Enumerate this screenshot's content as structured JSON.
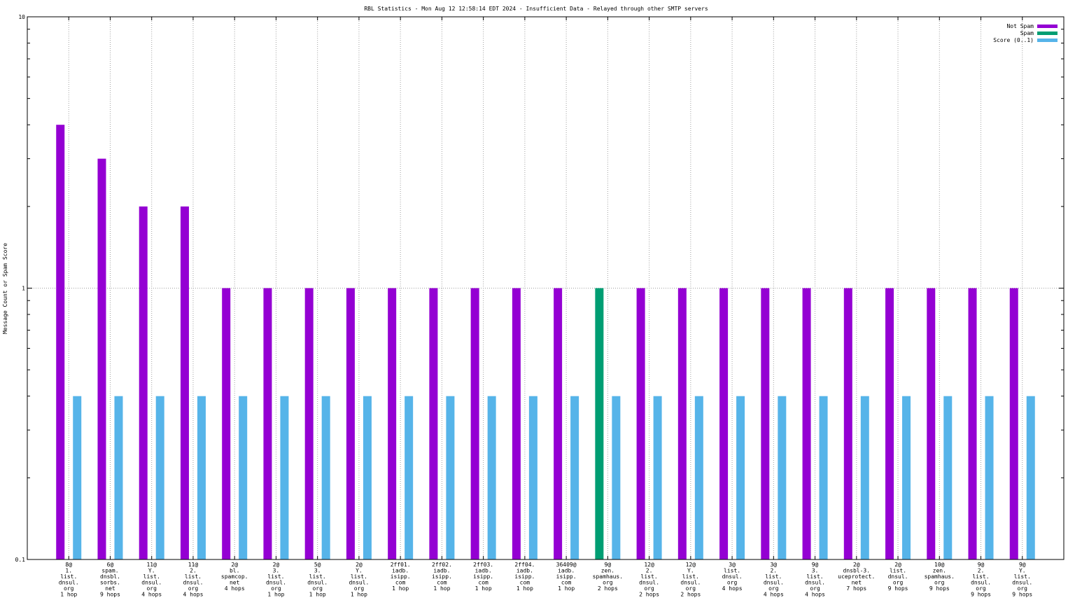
{
  "chart_data": {
    "type": "bar",
    "title": "RBL Statistics - Mon Aug 12 12:58:14 EDT 2024 - Insufficient Data - Relayed through other SMTP servers",
    "xlabel": "",
    "ylabel": "Message Count or Spam Score",
    "yscale": "log",
    "ylim": [
      0.1,
      10
    ],
    "yticks": [
      "10",
      "1",
      "0.1"
    ],
    "grid": true,
    "legend_position": "top-right",
    "categories": [
      [
        "8@",
        "1.",
        "list.",
        "dnsul.",
        "org",
        "1 hop"
      ],
      [
        "6@",
        "spam.",
        "dnsbl.",
        "sorbs.",
        "net",
        "9 hops"
      ],
      [
        "11@",
        "Y.",
        "list.",
        "dnsul.",
        "org",
        "4 hops"
      ],
      [
        "11@",
        "2.",
        "list.",
        "dnsul.",
        "org",
        "4 hops"
      ],
      [
        "2@",
        "bl.",
        "spamcop.",
        "net",
        "4 hops"
      ],
      [
        "2@",
        "3.",
        "list.",
        "dnsul.",
        "org",
        "1 hop"
      ],
      [
        "5@",
        "3.",
        "list.",
        "dnsul.",
        "org",
        "1 hop"
      ],
      [
        "2@",
        "Y.",
        "list.",
        "dnsul.",
        "org",
        "1 hop"
      ],
      [
        "2ff01.",
        "iadb.",
        "isipp.",
        "com",
        "1 hop"
      ],
      [
        "2ff02.",
        "iadb.",
        "isipp.",
        "com",
        "1 hop"
      ],
      [
        "2ff03.",
        "iadb.",
        "isipp.",
        "com",
        "1 hop"
      ],
      [
        "2ff04.",
        "iadb.",
        "isipp.",
        "com",
        "1 hop"
      ],
      [
        "36409@",
        "iadb.",
        "isipp.",
        "com",
        "1 hop"
      ],
      [
        "9@",
        "zen.",
        "spamhaus.",
        "org",
        "2 hops"
      ],
      [
        "12@",
        "2.",
        "list.",
        "dnsul.",
        "org",
        "2 hops"
      ],
      [
        "12@",
        "Y.",
        "list.",
        "dnsul.",
        "org",
        "2 hops"
      ],
      [
        "3@",
        "list.",
        "dnsul.",
        "org",
        "4 hops"
      ],
      [
        "3@",
        "2.",
        "list.",
        "dnsul.",
        "org",
        "4 hops"
      ],
      [
        "9@",
        "3.",
        "list.",
        "dnsul.",
        "org",
        "4 hops"
      ],
      [
        "2@",
        "dnsbl-3.",
        "uceprotect.",
        "net",
        "7 hops"
      ],
      [
        "2@",
        "list.",
        "dnsul.",
        "org",
        "9 hops"
      ],
      [
        "10@",
        "zen.",
        "spamhaus.",
        "org",
        "9 hops"
      ],
      [
        "9@",
        "2.",
        "list.",
        "dnsul.",
        "org",
        "9 hops"
      ],
      [
        "9@",
        "Y.",
        "list.",
        "dnsul.",
        "org",
        "9 hops"
      ]
    ],
    "series": [
      {
        "name": "Not Spam",
        "color": "#9400d3",
        "values": [
          4,
          3,
          2,
          2,
          1,
          1,
          1,
          1,
          1,
          1,
          1,
          1,
          1,
          null,
          1,
          1,
          1,
          1,
          1,
          1,
          1,
          1,
          1,
          1
        ]
      },
      {
        "name": "Spam",
        "color": "#009e73",
        "values": [
          null,
          null,
          null,
          null,
          null,
          null,
          null,
          null,
          null,
          null,
          null,
          null,
          null,
          1,
          null,
          null,
          null,
          null,
          null,
          null,
          null,
          null,
          null,
          null
        ]
      },
      {
        "name": "Score (0..1)",
        "color": "#56b4e9",
        "values": [
          0.4,
          0.4,
          0.4,
          0.4,
          0.4,
          0.4,
          0.4,
          0.4,
          0.4,
          0.4,
          0.4,
          0.4,
          0.4,
          0.4,
          0.4,
          0.4,
          0.4,
          0.4,
          0.4,
          0.4,
          0.4,
          0.4,
          0.4,
          0.4
        ]
      }
    ]
  }
}
